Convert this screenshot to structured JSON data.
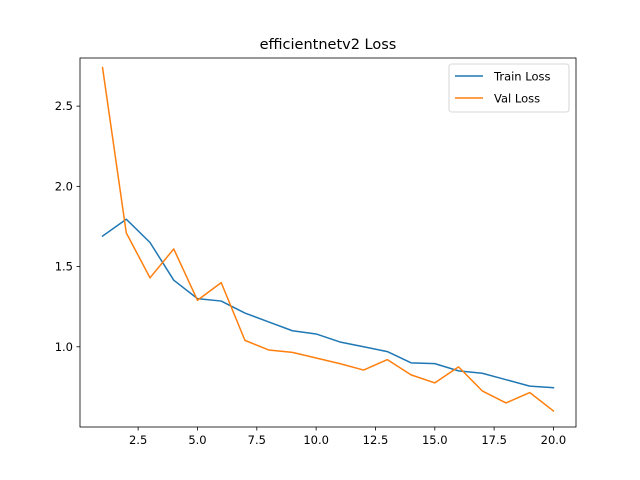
{
  "chart_data": {
    "type": "line",
    "title": "efficientnetv2 Loss",
    "xlabel": "",
    "ylabel": "",
    "x": [
      1,
      2,
      3,
      4,
      5,
      6,
      7,
      8,
      9,
      10,
      11,
      12,
      13,
      14,
      15,
      16,
      17,
      18,
      19,
      20
    ],
    "series": [
      {
        "name": "Train Loss",
        "color": "#1f77b4",
        "values": [
          1.69,
          1.795,
          1.65,
          1.415,
          1.3,
          1.285,
          1.21,
          1.155,
          1.1,
          1.08,
          1.03,
          1.0,
          0.97,
          0.9,
          0.895,
          0.85,
          0.835,
          0.795,
          0.755,
          0.745
        ]
      },
      {
        "name": "Val Loss",
        "color": "#ff7f0e",
        "values": [
          2.74,
          1.71,
          1.43,
          1.61,
          1.29,
          1.4,
          1.04,
          0.98,
          0.965,
          0.93,
          0.895,
          0.855,
          0.92,
          0.825,
          0.775,
          0.875,
          0.725,
          0.65,
          0.715,
          0.6
        ]
      }
    ],
    "xlim": [
      0.05,
      20.95
    ],
    "ylim": [
      0.5,
      2.8
    ],
    "xticks": [
      2.5,
      5.0,
      7.5,
      10.0,
      12.5,
      15.0,
      17.5,
      20.0
    ],
    "xtick_labels": [
      "2.5",
      "5.0",
      "7.5",
      "10.0",
      "12.5",
      "15.0",
      "17.5",
      "20.0"
    ],
    "yticks": [
      1.0,
      1.5,
      2.0,
      2.5
    ],
    "ytick_labels": [
      "1.0",
      "1.5",
      "2.0",
      "2.5"
    ],
    "grid": false,
    "legend_position": "upper right"
  }
}
